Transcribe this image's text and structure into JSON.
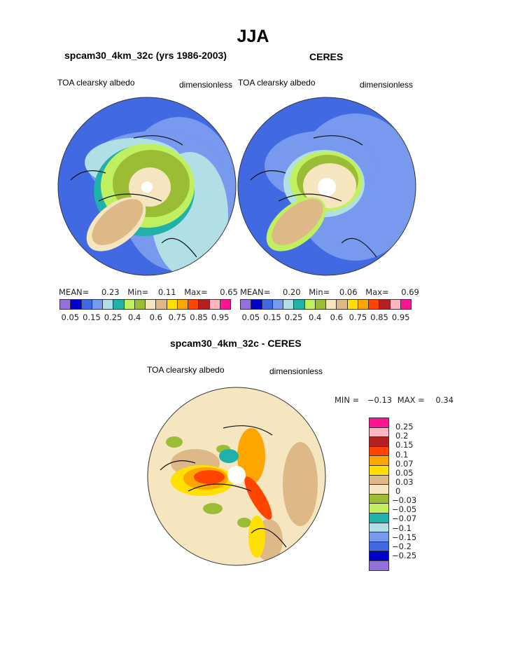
{
  "title": "JJA",
  "panels": [
    {
      "subtitle": "spcam30_4km_32c (yrs 1986-2003)",
      "left_label": "TOA clearsky albedo",
      "right_label": "dimensionless",
      "stats": {
        "mean_label": "MEAN=",
        "mean": "0.23",
        "min_label": "Min=",
        "min": "0.11",
        "max_label": "Max=",
        "max": "0.65"
      }
    },
    {
      "subtitle": "CERES",
      "left_label": "TOA clearsky albedo",
      "right_label": "dimensionless",
      "stats": {
        "mean_label": "MEAN=",
        "mean": "0.20",
        "min_label": "Min=",
        "min": "0.06",
        "max_label": "Max=",
        "max": "0.69"
      }
    }
  ],
  "colorbar": {
    "colors": [
      "#9370db",
      "#0000cd",
      "#4169e1",
      "#7799ee",
      "#b0e0e6",
      "#20b2aa",
      "#c0f060",
      "#9abd35",
      "#f5e6c0",
      "#deb887",
      "#ffe000",
      "#ffa500",
      "#ff4500",
      "#b22222",
      "#ffb6c1",
      "#ff1493"
    ],
    "horizontal_labels": [
      "0.05",
      "0.15",
      "0.25",
      "0.4",
      "0.6",
      "0.75",
      "0.85",
      "0.95"
    ]
  },
  "diff_panel": {
    "subtitle": "spcam30_4km_32c - CERES",
    "left_label": "TOA clearsky albedo",
    "right_label": "dimensionless",
    "stats": {
      "min_label": "MIN =",
      "min": "−0.13",
      "max_label": "MAX =",
      "max": "0.34"
    },
    "colorbar_colors": [
      "#ff1493",
      "#ffb6c1",
      "#b22222",
      "#ff4500",
      "#ffa500",
      "#ffe000",
      "#deb887",
      "#f5e6c0",
      "#9abd35",
      "#c0f060",
      "#20b2aa",
      "#b0e0e6",
      "#7799ee",
      "#4169e1",
      "#0000cd",
      "#9370db"
    ],
    "colorbar_labels": [
      "0.25",
      "0.2",
      "0.15",
      "0.1",
      "0.07",
      "0.05",
      "0.03",
      "0",
      "−0.03",
      "−0.05",
      "−0.07",
      "−0.1",
      "−0.15",
      "−0.2",
      "−0.25"
    ]
  }
}
